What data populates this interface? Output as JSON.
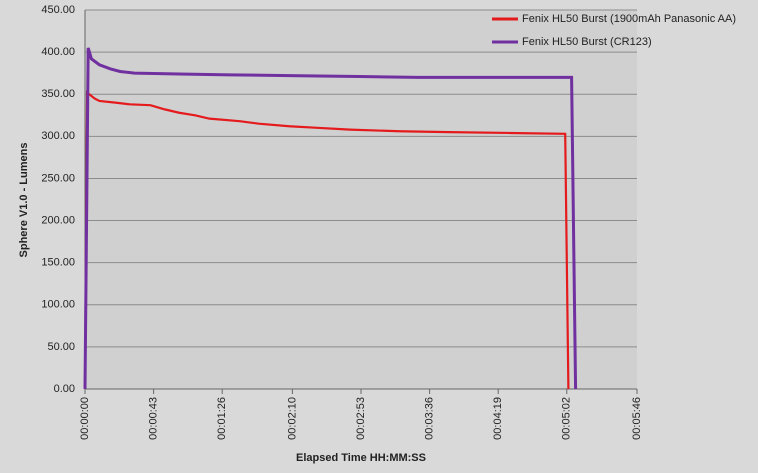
{
  "chart_data": {
    "type": "line",
    "x_label": "Elapsed Time HH:MM:SS",
    "y_label": "Sphere V1.0 - Lumens",
    "xlim": [
      0,
      346
    ],
    "ylim": [
      0,
      450
    ],
    "xticks": [
      {
        "value": 0,
        "label": "00:00:00"
      },
      {
        "value": 43,
        "label": "00:00:43"
      },
      {
        "value": 86,
        "label": "00:01:26"
      },
      {
        "value": 130,
        "label": "00:02:10"
      },
      {
        "value": 173,
        "label": "00:02:53"
      },
      {
        "value": 216,
        "label": "00:03:36"
      },
      {
        "value": 259,
        "label": "00:04:19"
      },
      {
        "value": 302,
        "label": "00:05:02"
      },
      {
        "value": 346,
        "label": "00:05:46"
      }
    ],
    "yticks": [
      {
        "value": 0,
        "label": "0.00"
      },
      {
        "value": 50,
        "label": "50.00"
      },
      {
        "value": 100,
        "label": "100.00"
      },
      {
        "value": 150,
        "label": "150.00"
      },
      {
        "value": 200,
        "label": "200.00"
      },
      {
        "value": 250,
        "label": "250.00"
      },
      {
        "value": 300,
        "label": "300.00"
      },
      {
        "value": 350,
        "label": "350.00"
      },
      {
        "value": 400,
        "label": "400.00"
      },
      {
        "value": 450,
        "label": "450.00"
      }
    ],
    "grid": true,
    "legend": "top-right",
    "series": [
      {
        "name": "Fenix HL50 Burst (1900mAh Panasonic AA)",
        "color": "#e41a1c",
        "x": [
          0,
          1.3,
          6,
          9,
          19,
          28,
          41,
          50,
          59,
          69,
          78,
          97,
          109,
          128,
          147,
          166,
          197,
          228,
          266,
          301,
          303
        ],
        "values": [
          0,
          352,
          345,
          342,
          340,
          338,
          337,
          332,
          328,
          325,
          321,
          318,
          315,
          312,
          310,
          308,
          306,
          305,
          304,
          303,
          0
        ]
      },
      {
        "name": "Fenix HL50 Burst (CR123)",
        "color": "#7030a0",
        "x": [
          0,
          2,
          4,
          9,
          16,
          22,
          31,
          59,
          91,
          134,
          172,
          209,
          305,
          307.5
        ],
        "values": [
          0,
          405,
          392,
          385,
          380,
          377,
          375,
          374,
          373,
          372,
          371,
          370,
          370,
          0
        ]
      }
    ]
  }
}
